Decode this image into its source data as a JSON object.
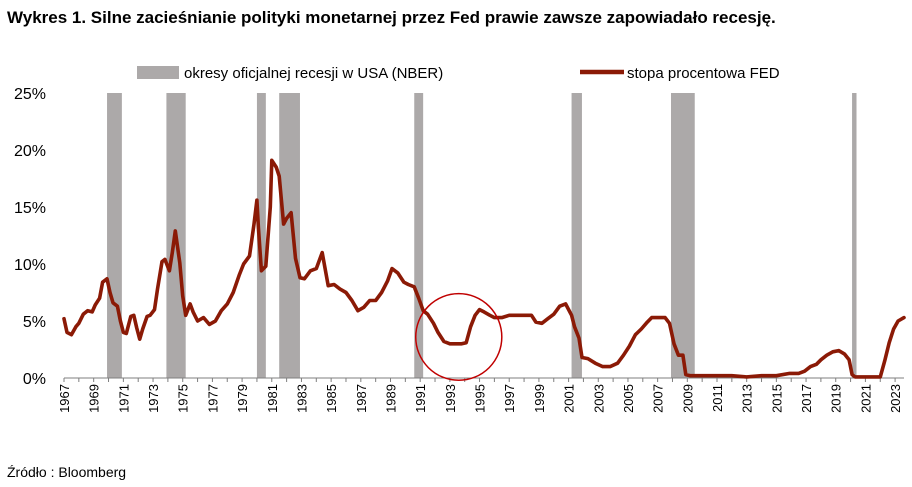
{
  "title": "Wykres 1. Silne zacieśnianie polityki monetarnej przez Fed prawie zawsze zapowiadało recesję.",
  "source": "Źródło : Bloomberg",
  "colors": {
    "recession": "#ACA9A9",
    "rate": "#8B1A06",
    "circle": "#C00000",
    "axis": "#7F7F7F"
  },
  "chart_data": {
    "type": "line",
    "title": "Wykres 1. Silne zacieśnianie polityki monetarnej przez Fed prawie zawsze zapowiadało recesję.",
    "xlabel": "",
    "ylabel": "",
    "xlim": [
      1967,
      2023.6
    ],
    "ylim": [
      0,
      25
    ],
    "y_ticks": [
      0,
      5,
      10,
      15,
      20,
      25
    ],
    "y_tick_labels": [
      "0%",
      "5%",
      "10%",
      "15%",
      "20%",
      "25%"
    ],
    "x_ticks": [
      1967,
      1969,
      1971,
      1973,
      1975,
      1977,
      1979,
      1981,
      1983,
      1985,
      1987,
      1989,
      1991,
      1993,
      1995,
      1997,
      1999,
      2001,
      2003,
      2005,
      2007,
      2009,
      2011,
      2013,
      2015,
      2017,
      2019,
      2021,
      2023
    ],
    "x_tick_labels": [
      "1967",
      "1969",
      "1971",
      "1973",
      "1975",
      "1977",
      "1979",
      "1981",
      "1983",
      "1985",
      "1987",
      "1989",
      "1991",
      "1993",
      "1995",
      "1997",
      "1999",
      "2001",
      "2003",
      "2005",
      "2007",
      "2009",
      "2011",
      "2013",
      "2015",
      "2017",
      "2019",
      "2021",
      "2023"
    ],
    "legend": [
      "okresy oficjalnej recesji w USA (NBER)",
      "stopa procentowa FED"
    ],
    "legend_position": "top",
    "recessions": [
      [
        1969.9,
        1970.9
      ],
      [
        1973.9,
        1975.2
      ],
      [
        1980.0,
        1980.6
      ],
      [
        1981.5,
        1982.9
      ],
      [
        1990.6,
        1991.2
      ],
      [
        2001.2,
        2001.9
      ],
      [
        2007.9,
        2009.5
      ],
      [
        2020.1,
        2020.4
      ]
    ],
    "series": [
      {
        "name": "stopa procentowa FED",
        "x": [
          1967.0,
          1967.2,
          1967.5,
          1967.8,
          1968.0,
          1968.3,
          1968.6,
          1968.9,
          1969.1,
          1969.4,
          1969.6,
          1969.9,
          1970.1,
          1970.3,
          1970.6,
          1970.8,
          1971.0,
          1971.2,
          1971.5,
          1971.7,
          1971.9,
          1972.1,
          1972.3,
          1972.6,
          1972.8,
          1973.1,
          1973.3,
          1973.6,
          1973.8,
          1974.1,
          1974.3,
          1974.5,
          1974.8,
          1975.0,
          1975.2,
          1975.5,
          1975.7,
          1976.0,
          1976.4,
          1976.8,
          1977.2,
          1977.6,
          1978.0,
          1978.4,
          1978.8,
          1979.1,
          1979.5,
          1979.8,
          1980.0,
          1980.1,
          1980.3,
          1980.6,
          1980.9,
          1981.0,
          1981.3,
          1981.5,
          1981.8,
          1982.0,
          1982.3,
          1982.6,
          1982.9,
          1983.2,
          1983.6,
          1984.0,
          1984.4,
          1984.8,
          1985.2,
          1985.6,
          1986.0,
          1986.4,
          1986.8,
          1987.2,
          1987.6,
          1988.0,
          1988.4,
          1988.8,
          1989.1,
          1989.5,
          1989.9,
          1990.2,
          1990.6,
          1990.9,
          1991.2,
          1991.5,
          1991.9,
          1992.2,
          1992.6,
          1993.0,
          1993.4,
          1993.8,
          1994.1,
          1994.4,
          1994.7,
          1995.0,
          1995.3,
          1995.7,
          1996.0,
          1996.5,
          1997.0,
          1997.5,
          1998.0,
          1998.5,
          1998.8,
          1999.2,
          1999.6,
          2000.0,
          2000.4,
          2000.8,
          2001.2,
          2001.4,
          2001.7,
          2001.9,
          2002.3,
          2002.8,
          2003.3,
          2003.8,
          2004.3,
          2004.7,
          2005.1,
          2005.5,
          2005.9,
          2006.3,
          2006.6,
          2007.0,
          2007.5,
          2007.8,
          2008.1,
          2008.4,
          2008.7,
          2008.9,
          2009.2,
          2010.0,
          2011.0,
          2012.0,
          2013.0,
          2014.0,
          2015.0,
          2015.9,
          2016.5,
          2016.9,
          2017.3,
          2017.7,
          2018.0,
          2018.4,
          2018.8,
          2019.2,
          2019.6,
          2019.9,
          2020.1,
          2020.3,
          2020.5,
          2021.0,
          2021.5,
          2022.0,
          2022.3,
          2022.6,
          2022.9,
          2023.2,
          2023.6
        ],
        "y": [
          5.2,
          4.0,
          3.8,
          4.5,
          4.8,
          5.6,
          5.9,
          5.8,
          6.4,
          7.0,
          8.4,
          8.7,
          7.5,
          6.6,
          6.3,
          5.0,
          4.0,
          3.9,
          5.4,
          5.5,
          4.4,
          3.4,
          4.3,
          5.4,
          5.5,
          6.0,
          7.8,
          10.2,
          10.4,
          9.4,
          11.0,
          12.9,
          10.1,
          7.2,
          5.5,
          6.5,
          5.8,
          5.0,
          5.3,
          4.7,
          5.0,
          5.9,
          6.5,
          7.5,
          9.0,
          10.0,
          10.7,
          13.5,
          15.6,
          13.2,
          9.4,
          9.8,
          15.0,
          19.1,
          18.5,
          17.7,
          13.5,
          14.0,
          14.5,
          10.5,
          8.8,
          8.7,
          9.4,
          9.6,
          11.0,
          8.1,
          8.2,
          7.8,
          7.5,
          6.8,
          5.9,
          6.2,
          6.8,
          6.8,
          7.5,
          8.5,
          9.6,
          9.2,
          8.4,
          8.2,
          8.0,
          7.0,
          5.9,
          5.6,
          4.8,
          4.0,
          3.2,
          3.0,
          3.0,
          3.0,
          3.1,
          4.5,
          5.5,
          6.0,
          5.8,
          5.5,
          5.3,
          5.3,
          5.5,
          5.5,
          5.5,
          5.5,
          4.9,
          4.8,
          5.2,
          5.6,
          6.3,
          6.5,
          5.5,
          4.5,
          3.5,
          1.8,
          1.7,
          1.3,
          1.0,
          1.0,
          1.3,
          2.0,
          2.8,
          3.8,
          4.3,
          4.9,
          5.3,
          5.3,
          5.3,
          4.8,
          3.0,
          2.0,
          2.0,
          0.3,
          0.2,
          0.2,
          0.2,
          0.2,
          0.1,
          0.2,
          0.2,
          0.4,
          0.4,
          0.6,
          1.0,
          1.2,
          1.6,
          2.0,
          2.3,
          2.4,
          2.1,
          1.6,
          0.3,
          0.1,
          0.1,
          0.1,
          0.1,
          0.1,
          1.5,
          3.1,
          4.3,
          5.0,
          5.3
        ]
      }
    ],
    "annotations": [
      {
        "type": "circle",
        "center": [
          1993.6,
          3.6
        ],
        "radius_x_years": 2.9,
        "radius_y_value": 3.8
      }
    ]
  }
}
